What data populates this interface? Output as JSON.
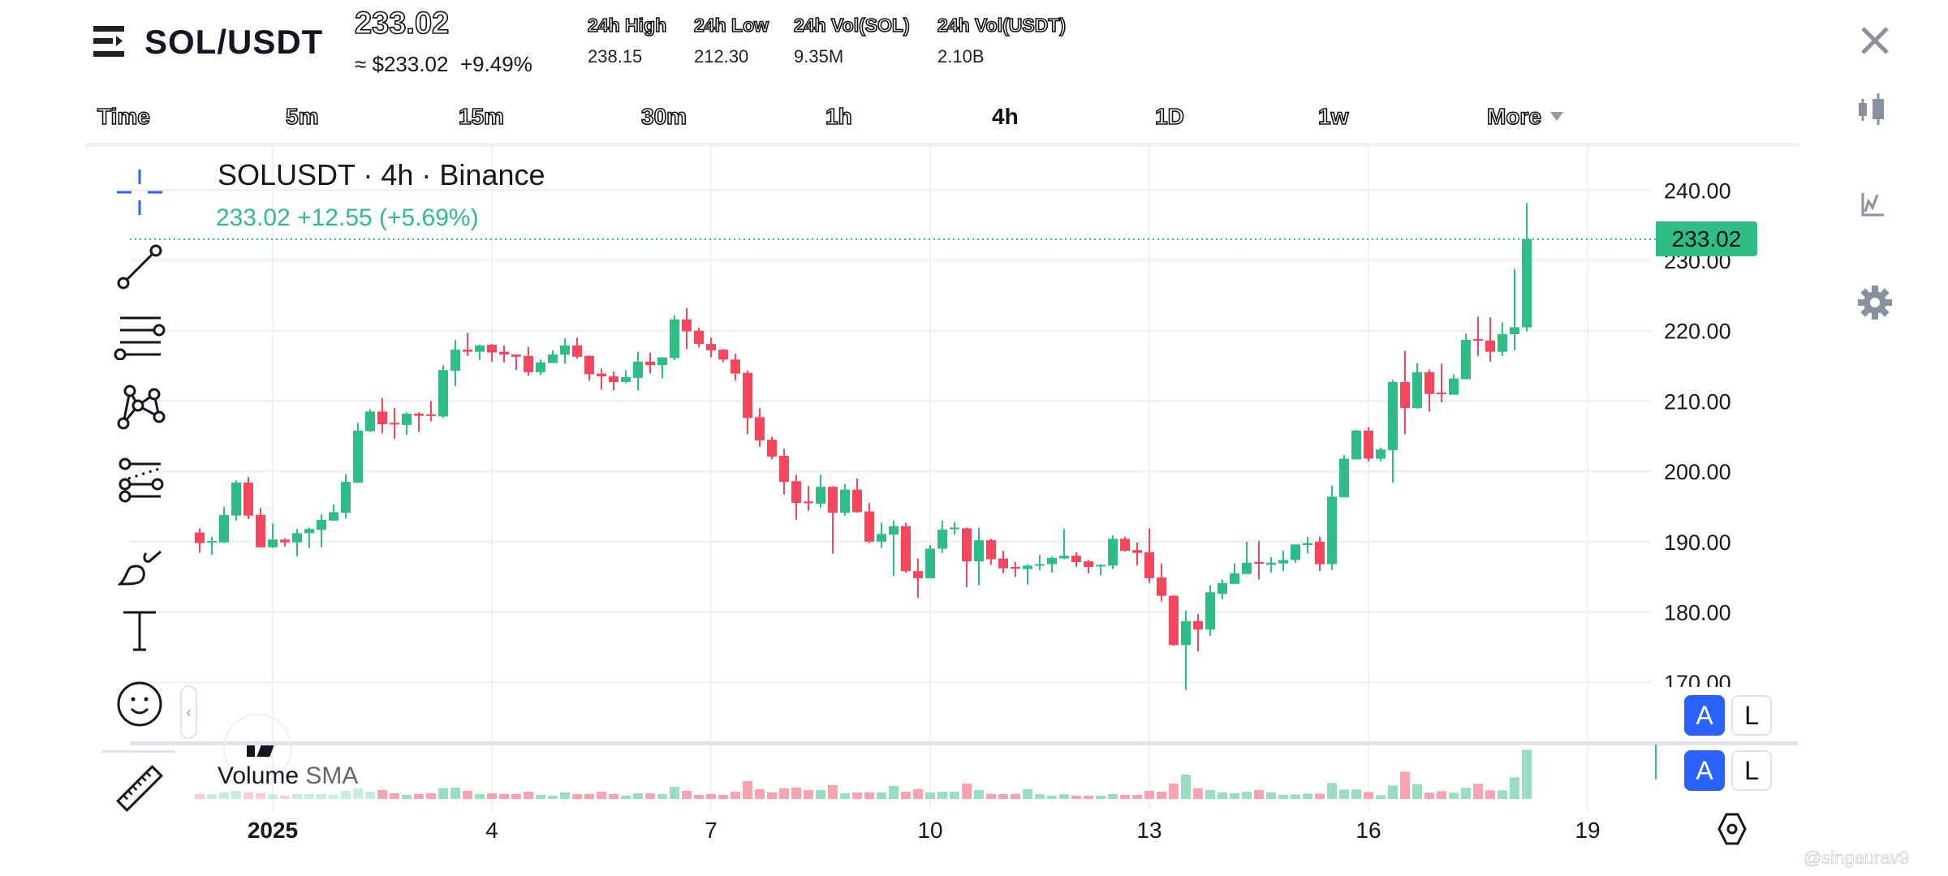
{
  "header": {
    "pair": "SOL/USDT",
    "price": "233.02",
    "approx": "≈ $233.02",
    "change": "+9.49%",
    "stats": [
      {
        "label": "24h High",
        "value": "238.15"
      },
      {
        "label": "24h Low",
        "value": "212.30"
      },
      {
        "label": "24h Vol(SOL)",
        "value": "9.35M"
      },
      {
        "label": "24h Vol(USDT)",
        "value": "2.10B"
      }
    ]
  },
  "timeframes": [
    {
      "label": "Time"
    },
    {
      "label": "5m"
    },
    {
      "label": "15m"
    },
    {
      "label": "30m"
    },
    {
      "label": "1h"
    },
    {
      "label": "4h",
      "selected": true
    },
    {
      "label": "1D"
    },
    {
      "label": "1w"
    },
    {
      "label": "More"
    }
  ],
  "right_icons": [
    "close-icon",
    "candlestick-icon",
    "indicator-chart-icon",
    "gear-icon"
  ],
  "left_tools": [
    "crosshair-icon",
    "trend-line-icon",
    "horizontal-lines-icon",
    "pattern-icon",
    "fib-channel-icon",
    "brush-icon",
    "text-icon",
    "emoji-icon",
    "ruler-icon"
  ],
  "chart": {
    "title": "SOLUSDT · 4h · Binance",
    "legend": "233.02  +12.55 (+5.69%)",
    "last_price": "233.02",
    "volume_label": "Volume",
    "volume_sma": "SMA",
    "auto_label": "A",
    "log_label": "L",
    "watermark": "@singaurav9"
  },
  "colors": {
    "up": "#2ebd85",
    "down": "#f6465d",
    "up_vol": "#98dfc1",
    "down_vol": "#f9a3ae",
    "accent": "#2962ff"
  },
  "chart_data": {
    "type": "candlestick",
    "interval": "4h",
    "ylim": [
      170,
      240
    ],
    "last_price": 233.02,
    "yticks": [
      "240.00",
      "230.00",
      "220.00",
      "210.00",
      "200.00",
      "190.00",
      "180.00",
      "170.00"
    ],
    "xticks": [
      {
        "date": "2025-01-01",
        "label": "2025"
      },
      {
        "date": "2025-01-04",
        "label": "4"
      },
      {
        "date": "2025-01-07",
        "label": "7"
      },
      {
        "date": "2025-01-10",
        "label": "10"
      },
      {
        "date": "2025-01-13",
        "label": "13"
      },
      {
        "date": "2025-01-16",
        "label": "16"
      },
      {
        "date": "2025-01-19",
        "label": "19"
      }
    ],
    "bar_fields": [
      "open",
      "high",
      "low",
      "close",
      "volume"
    ],
    "days": [
      {
        "date": "2024-12-31",
        "bars": [
          [
            191.3,
            191.9,
            188.4,
            189.8,
            18
          ],
          [
            189.9,
            190.7,
            188.1,
            190.1,
            17
          ],
          [
            189.9,
            194.9,
            189.8,
            193.8,
            24
          ],
          [
            193.7,
            198.7,
            193.0,
            198.4,
            30
          ],
          [
            198.4,
            199.2,
            193.2,
            193.7,
            24
          ],
          [
            193.8,
            194.8,
            189.2,
            189.2,
            21
          ]
        ]
      },
      {
        "date": "2025-01-01",
        "bars": [
          [
            189.2,
            192.6,
            189.1,
            190.3,
            17
          ],
          [
            190.3,
            190.5,
            189.3,
            189.9,
            12
          ],
          [
            189.9,
            191.8,
            187.9,
            191.2,
            18
          ],
          [
            191.2,
            192.0,
            189.1,
            191.8,
            18
          ],
          [
            191.7,
            193.9,
            189.2,
            193.1,
            18
          ],
          [
            193.0,
            195.3,
            193.0,
            194.2,
            15
          ]
        ]
      },
      {
        "date": "2025-01-02",
        "bars": [
          [
            194.1,
            199.6,
            193.3,
            198.5,
            30
          ],
          [
            198.4,
            206.9,
            198.4,
            205.8,
            39
          ],
          [
            205.7,
            208.8,
            205.6,
            208.5,
            27
          ],
          [
            208.5,
            210.4,
            205.4,
            206.7,
            33
          ],
          [
            206.9,
            209.0,
            204.6,
            206.8,
            21
          ],
          [
            206.6,
            208.4,
            205.2,
            208.2,
            15
          ]
        ]
      },
      {
        "date": "2025-01-03",
        "bars": [
          [
            208.2,
            208.4,
            205.6,
            207.9,
            18
          ],
          [
            208.1,
            210.0,
            207.1,
            208.0,
            21
          ],
          [
            207.8,
            215.1,
            207.6,
            214.4,
            40
          ],
          [
            214.3,
            218.7,
            212.1,
            217.3,
            42
          ],
          [
            217.3,
            219.7,
            216.4,
            217.0,
            30
          ],
          [
            217.0,
            218.0,
            215.8,
            217.9,
            18
          ]
        ]
      },
      {
        "date": "2025-01-04",
        "bars": [
          [
            218.0,
            218.1,
            215.6,
            216.9,
            21
          ],
          [
            217.0,
            217.9,
            215.5,
            216.6,
            18
          ],
          [
            216.6,
            216.6,
            214.4,
            216.3,
            18
          ],
          [
            216.4,
            217.7,
            213.6,
            214.1,
            27
          ],
          [
            214.1,
            215.9,
            213.7,
            215.5,
            15
          ],
          [
            215.4,
            217.2,
            215.4,
            216.6,
            12
          ]
        ]
      },
      {
        "date": "2025-01-05",
        "bars": [
          [
            216.6,
            218.9,
            215.3,
            217.9,
            24
          ],
          [
            217.9,
            219.0,
            216.0,
            216.3,
            18
          ],
          [
            216.4,
            216.5,
            212.9,
            213.8,
            18
          ],
          [
            213.9,
            214.6,
            211.6,
            213.5,
            27
          ],
          [
            213.5,
            214.2,
            211.5,
            212.7,
            18
          ],
          [
            212.7,
            214.4,
            212.5,
            213.4,
            12
          ]
        ]
      },
      {
        "date": "2025-01-06",
        "bars": [
          [
            213.3,
            217.0,
            211.5,
            215.6,
            21
          ],
          [
            215.6,
            216.9,
            213.9,
            215.1,
            21
          ],
          [
            215.1,
            216.2,
            213.2,
            216.2,
            18
          ],
          [
            216.1,
            222.2,
            215.8,
            221.6,
            45
          ],
          [
            221.6,
            223.2,
            217.4,
            219.9,
            30
          ],
          [
            220.0,
            220.4,
            217.6,
            218.1,
            15
          ]
        ]
      },
      {
        "date": "2025-01-07",
        "bars": [
          [
            218.1,
            219.0,
            216.2,
            217.2,
            18
          ],
          [
            217.3,
            217.4,
            215.5,
            215.9,
            15
          ],
          [
            215.9,
            216.7,
            212.9,
            213.9,
            27
          ],
          [
            214.0,
            214.3,
            205.3,
            207.6,
            66
          ],
          [
            207.7,
            209.0,
            203.5,
            204.4,
            36
          ],
          [
            204.5,
            204.9,
            201.7,
            202.1,
            24
          ]
        ]
      },
      {
        "date": "2025-01-08",
        "bars": [
          [
            202.2,
            203.2,
            196.7,
            198.5,
            39
          ],
          [
            198.6,
            199.5,
            193.1,
            195.5,
            42
          ],
          [
            195.7,
            197.9,
            194.4,
            195.6,
            33
          ],
          [
            195.4,
            199.5,
            194.8,
            197.8,
            33
          ],
          [
            197.8,
            197.9,
            188.3,
            194.1,
            51
          ],
          [
            194.1,
            198.2,
            193.7,
            197.4,
            21
          ]
        ]
      },
      {
        "date": "2025-01-09",
        "bars": [
          [
            197.4,
            199.0,
            194.1,
            194.2,
            24
          ],
          [
            194.3,
            195.5,
            189.8,
            190.0,
            24
          ],
          [
            190.0,
            192.7,
            189.1,
            191.1,
            24
          ],
          [
            191.0,
            193.0,
            185.1,
            192.2,
            48
          ],
          [
            192.2,
            192.7,
            185.6,
            185.8,
            27
          ],
          [
            185.8,
            187.6,
            182.0,
            184.8,
            36
          ]
        ]
      },
      {
        "date": "2025-01-10",
        "bars": [
          [
            184.8,
            189.5,
            184.8,
            189.0,
            24
          ],
          [
            189.0,
            193.0,
            188.4,
            191.7,
            27
          ],
          [
            191.9,
            192.8,
            191.0,
            192.0,
            27
          ],
          [
            191.9,
            192.0,
            183.5,
            187.2,
            57
          ],
          [
            187.2,
            192.0,
            183.8,
            190.2,
            33
          ],
          [
            190.2,
            190.4,
            186.7,
            187.5,
            18
          ]
        ]
      },
      {
        "date": "2025-01-11",
        "bars": [
          [
            187.6,
            188.7,
            185.5,
            186.2,
            18
          ],
          [
            186.4,
            187.1,
            185.0,
            186.3,
            18
          ],
          [
            186.1,
            186.8,
            183.9,
            186.6,
            36
          ],
          [
            186.6,
            188.1,
            185.9,
            186.8,
            18
          ],
          [
            186.8,
            187.9,
            185.6,
            187.7,
            12
          ],
          [
            187.6,
            191.8,
            187.5,
            188.0,
            18
          ]
        ]
      },
      {
        "date": "2025-01-12",
        "bars": [
          [
            188.0,
            188.5,
            186.4,
            187.1,
            12
          ],
          [
            187.2,
            187.4,
            185.5,
            186.4,
            12
          ],
          [
            186.6,
            186.8,
            185.2,
            186.7,
            12
          ],
          [
            186.6,
            190.9,
            186.1,
            190.4,
            18
          ],
          [
            190.4,
            190.7,
            188.6,
            188.7,
            15
          ],
          [
            188.8,
            189.9,
            186.6,
            188.4,
            15
          ]
        ]
      },
      {
        "date": "2025-01-13",
        "bars": [
          [
            188.5,
            191.9,
            184.1,
            184.8,
            30
          ],
          [
            184.9,
            186.9,
            181.5,
            182.3,
            27
          ],
          [
            182.3,
            182.4,
            175.2,
            175.3,
            57
          ],
          [
            175.3,
            180.2,
            168.9,
            178.7,
            90
          ],
          [
            178.7,
            179.7,
            174.4,
            177.5,
            39
          ],
          [
            177.5,
            183.8,
            176.6,
            182.8,
            33
          ]
        ]
      },
      {
        "date": "2025-01-14",
        "bars": [
          [
            182.6,
            184.6,
            181.8,
            184.1,
            24
          ],
          [
            184.0,
            186.9,
            184.0,
            185.5,
            21
          ],
          [
            185.4,
            190.0,
            185.4,
            187.0,
            27
          ],
          [
            187.1,
            190.1,
            184.6,
            187.0,
            33
          ],
          [
            186.7,
            187.8,
            185.6,
            187.0,
            24
          ],
          [
            186.9,
            188.7,
            185.8,
            187.4,
            15
          ]
        ]
      },
      {
        "date": "2025-01-15",
        "bars": [
          [
            187.4,
            189.6,
            187.0,
            189.6,
            17
          ],
          [
            189.5,
            190.7,
            188.3,
            189.8,
            20
          ],
          [
            190.0,
            190.7,
            185.8,
            186.8,
            20
          ],
          [
            186.8,
            198.0,
            186.0,
            196.4,
            59
          ],
          [
            196.3,
            202.3,
            196.3,
            201.8,
            35
          ],
          [
            201.7,
            205.9,
            201.7,
            205.8,
            35
          ]
        ]
      },
      {
        "date": "2025-01-16",
        "bars": [
          [
            205.8,
            206.3,
            201.4,
            201.8,
            26
          ],
          [
            201.8,
            203.4,
            201.4,
            203.1,
            14
          ],
          [
            203.0,
            213.0,
            198.4,
            212.7,
            50
          ],
          [
            212.7,
            217.1,
            205.3,
            209.0,
            101
          ],
          [
            209.0,
            215.4,
            208.9,
            214.1,
            54
          ],
          [
            214.1,
            214.5,
            208.5,
            211.0,
            23
          ]
        ]
      },
      {
        "date": "2025-01-17",
        "bars": [
          [
            211.2,
            215.3,
            209.8,
            211.1,
            29
          ],
          [
            210.9,
            213.8,
            210.9,
            213.2,
            23
          ],
          [
            213.1,
            219.6,
            213.1,
            218.7,
            41
          ],
          [
            218.8,
            222.0,
            216.4,
            218.7,
            56
          ],
          [
            218.6,
            221.9,
            215.6,
            217.0,
            32
          ],
          [
            217.0,
            221.2,
            216.4,
            219.5,
            32
          ]
        ]
      },
      {
        "date": "2025-01-18",
        "bars": [
          [
            219.5,
            228.8,
            217.2,
            220.5,
            80
          ],
          [
            220.47,
            238.15,
            219.9,
            233.02,
            182
          ]
        ]
      }
    ]
  }
}
